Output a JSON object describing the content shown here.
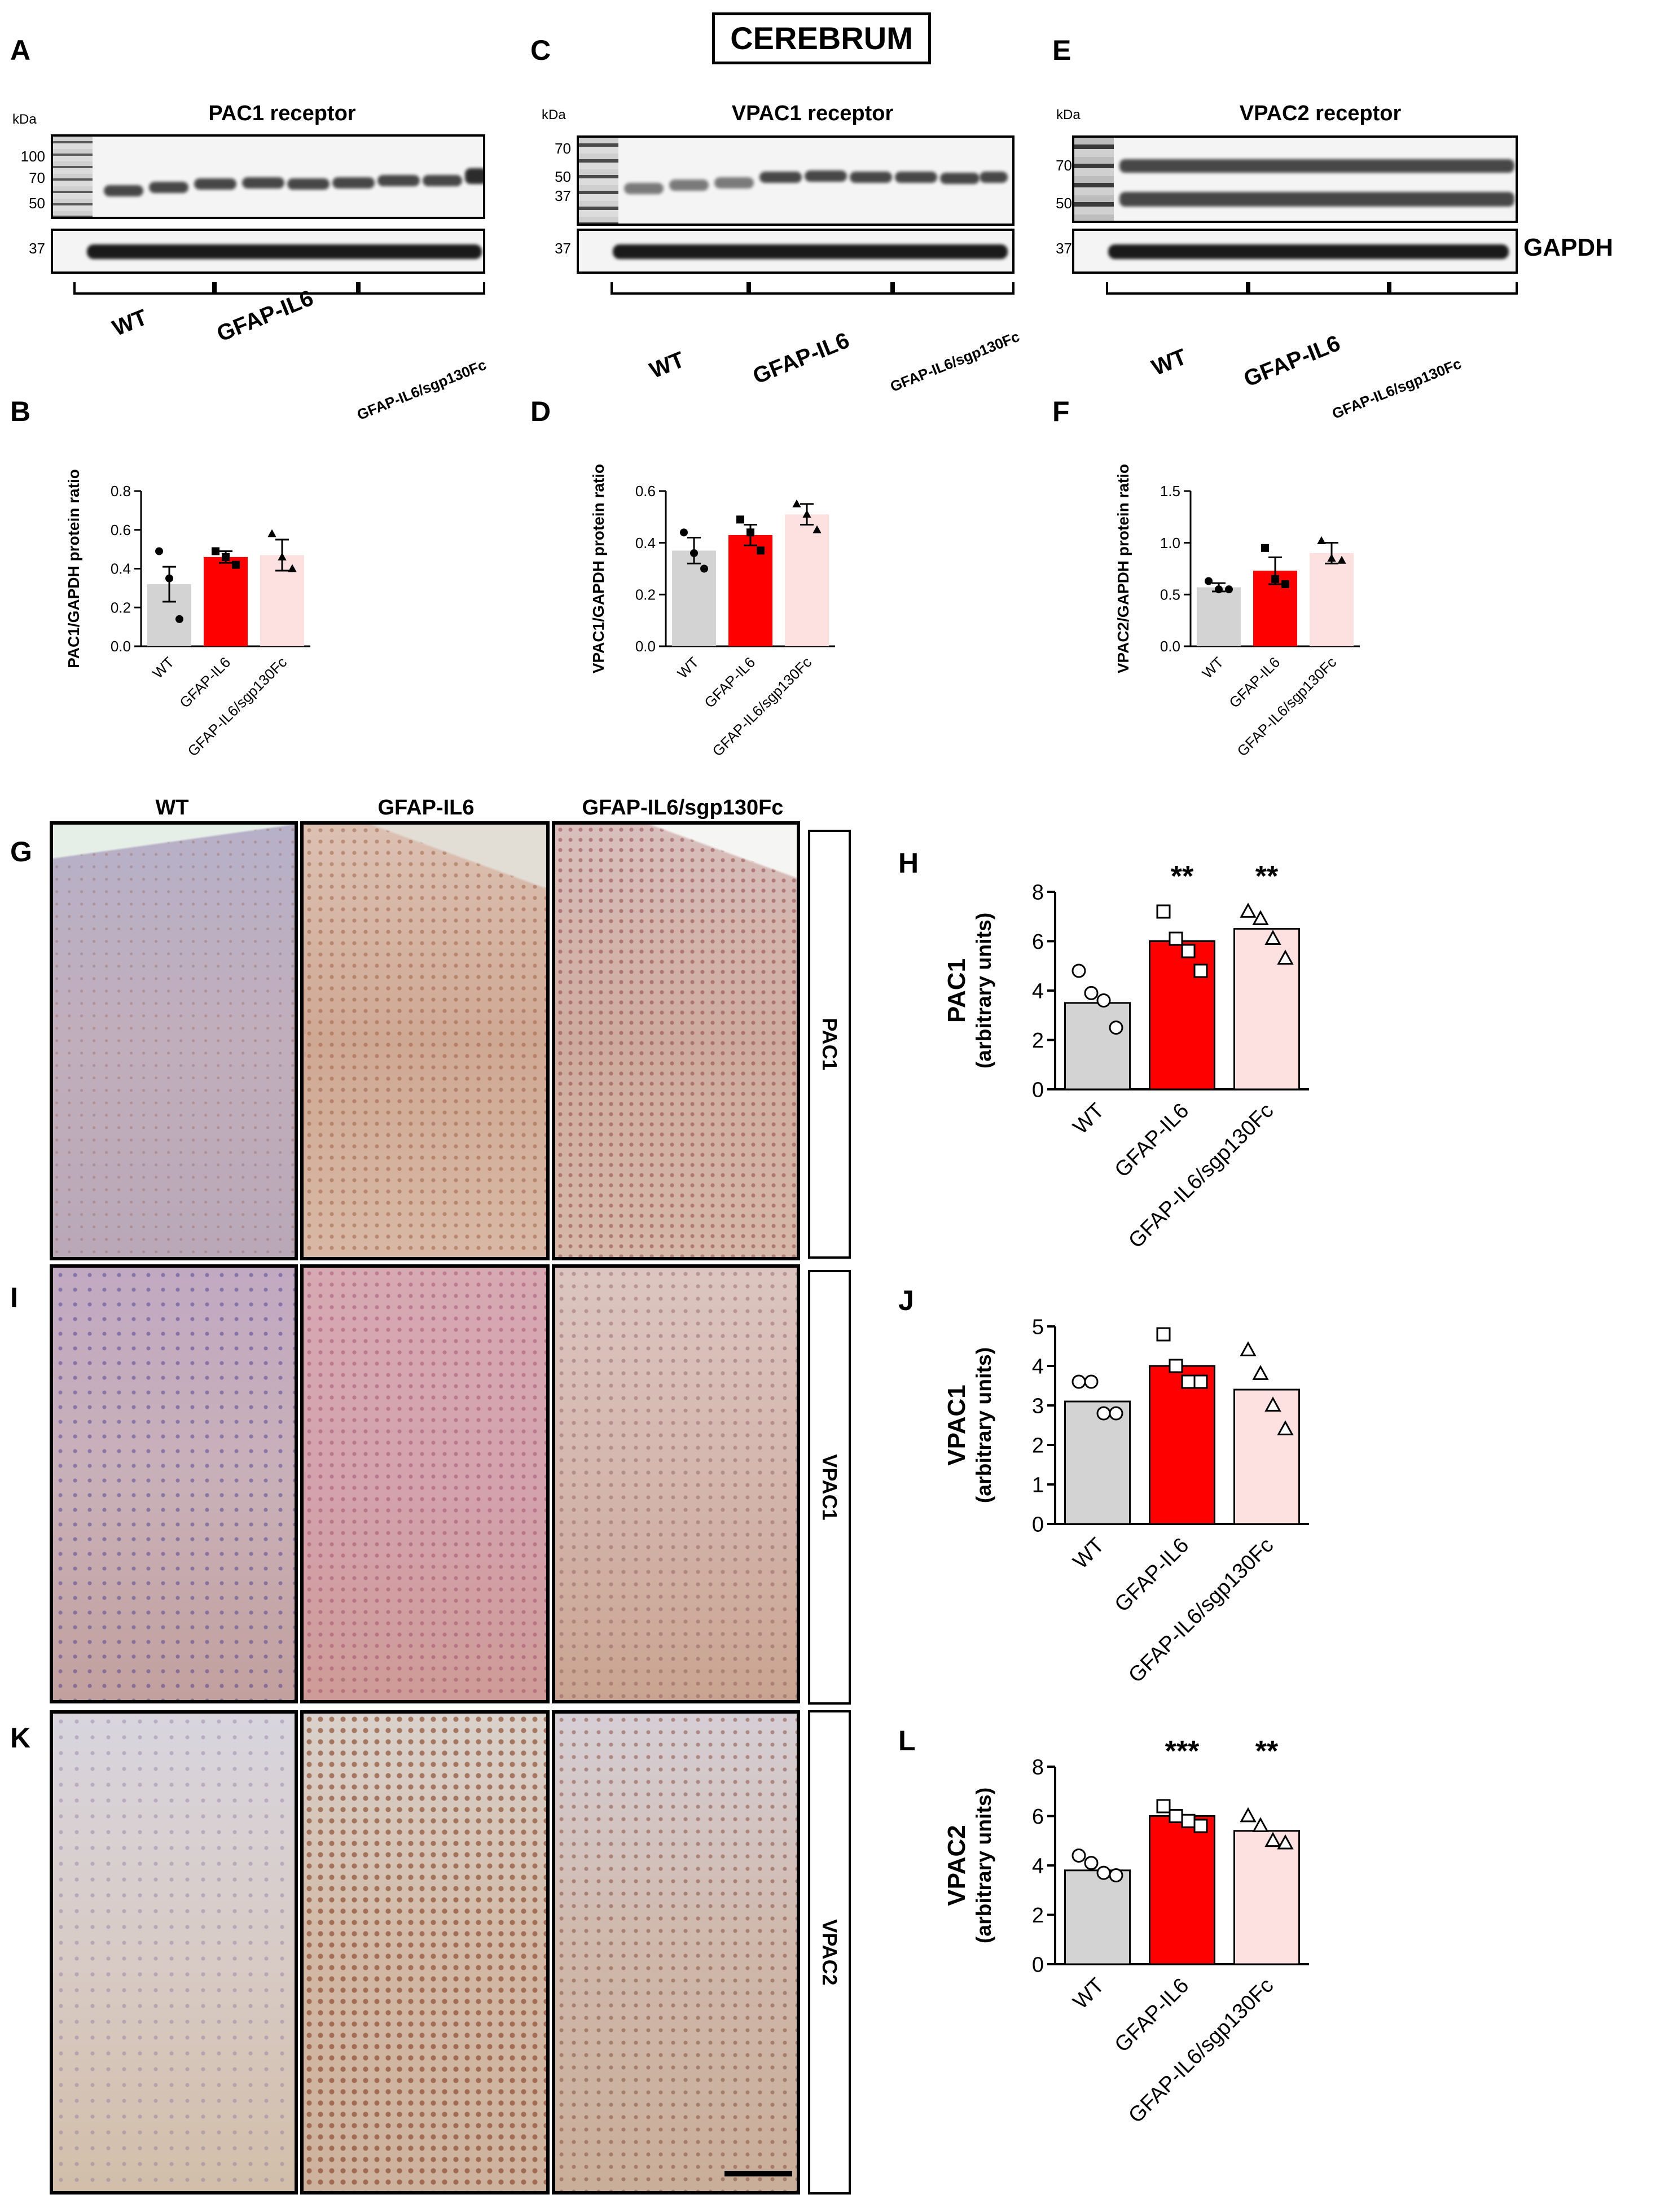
{
  "figure": {
    "header": "CEREBRUM",
    "units_label": "kDa",
    "loading_control": "GAPDH",
    "groups_blot": [
      "WT",
      "GFAP-IL6",
      "GFAP-IL6/sgp130Fc"
    ],
    "groups_micro": [
      "WT",
      "GFAP-IL6",
      "GFAP-IL6/sgp130Fc"
    ],
    "colors": {
      "WT": "#d3d3d3",
      "GFAP-IL6": "#ff0000",
      "GFAP-IL6/sgp130Fc": "#fde0e0"
    }
  },
  "panels": {
    "A": {
      "letter": "A",
      "title": "PAC1 receptor",
      "markers": [
        "100",
        "70",
        "50"
      ],
      "gapdh_marker": "37"
    },
    "C": {
      "letter": "C",
      "title": "VPAC1 receptor",
      "markers": [
        "70",
        "50",
        "37"
      ],
      "gapdh_marker": "37"
    },
    "E": {
      "letter": "E",
      "title": "VPAC2 receptor",
      "markers": [
        "70",
        "50"
      ],
      "gapdh_marker": "37"
    },
    "B": {
      "letter": "B"
    },
    "D": {
      "letter": "D"
    },
    "F": {
      "letter": "F"
    },
    "G": {
      "letter": "G",
      "stain": "PAC1"
    },
    "I": {
      "letter": "I",
      "stain": "VPAC1"
    },
    "K": {
      "letter": "K",
      "stain": "VPAC2"
    },
    "H": {
      "letter": "H"
    },
    "J": {
      "letter": "J"
    },
    "L": {
      "letter": "L"
    }
  },
  "chart_data": [
    {
      "id": "B",
      "type": "bar",
      "ylabel": "PAC1/GAPDH protein ratio",
      "categories": [
        "WT",
        "GFAP-IL6",
        "GFAP-IL6/sgp130Fc"
      ],
      "values": [
        0.32,
        0.46,
        0.47
      ],
      "errors": [
        0.09,
        0.03,
        0.08
      ],
      "points": [
        [
          0.49,
          0.35,
          0.14
        ],
        [
          0.49,
          0.46,
          0.42
        ],
        [
          0.58,
          0.46,
          0.4
        ]
      ],
      "ylim": [
        0,
        0.8
      ],
      "yticks": [
        "0.0",
        "0.2",
        "0.4",
        "0.6",
        "0.8"
      ],
      "point_shape": "filled"
    },
    {
      "id": "D",
      "type": "bar",
      "ylabel": "VPAC1/GAPDH protein ratio",
      "categories": [
        "WT",
        "GFAP-IL6",
        "GFAP-IL6/sgp130Fc"
      ],
      "values": [
        0.37,
        0.43,
        0.51
      ],
      "errors": [
        0.05,
        0.04,
        0.04
      ],
      "points": [
        [
          0.44,
          0.36,
          0.3
        ],
        [
          0.49,
          0.44,
          0.37
        ],
        [
          0.55,
          0.51,
          0.45
        ]
      ],
      "ylim": [
        0,
        0.6
      ],
      "yticks": [
        "0.0",
        "0.2",
        "0.4",
        "0.6"
      ],
      "point_shape": "filled"
    },
    {
      "id": "F",
      "type": "bar",
      "ylabel": "VPAC2/GAPDH protein ratio",
      "categories": [
        "WT",
        "GFAP-IL6",
        "GFAP-IL6/sgp130Fc"
      ],
      "values": [
        0.57,
        0.73,
        0.9
      ],
      "errors": [
        0.04,
        0.13,
        0.1
      ],
      "points": [
        [
          0.63,
          0.55,
          0.55
        ],
        [
          0.95,
          0.65,
          0.6
        ],
        [
          1.02,
          0.85,
          0.83
        ]
      ],
      "ylim": [
        0,
        1.5
      ],
      "yticks": [
        "0.0",
        "0.5",
        "1.0",
        "1.5"
      ],
      "point_shape": "filled"
    },
    {
      "id": "H",
      "type": "bar",
      "ylabel": "PAC1",
      "ylabel2": "(arbitrary units)",
      "categories": [
        "WT",
        "GFAP-IL6",
        "GFAP-IL6/sgp130Fc"
      ],
      "values": [
        3.5,
        6.0,
        6.5
      ],
      "significance": [
        "",
        "**",
        "**"
      ],
      "points": [
        [
          4.8,
          3.9,
          3.6,
          2.5
        ],
        [
          7.2,
          6.1,
          5.6,
          4.8
        ],
        [
          7.2,
          6.9,
          6.1,
          5.3
        ]
      ],
      "ylim": [
        0,
        8
      ],
      "yticks": [
        "0",
        "2",
        "4",
        "6",
        "8"
      ],
      "point_shape": "open"
    },
    {
      "id": "J",
      "type": "bar",
      "ylabel": "VPAC1",
      "ylabel2": "(arbitrary units)",
      "categories": [
        "WT",
        "GFAP-IL6",
        "GFAP-IL6/sgp130Fc"
      ],
      "values": [
        3.1,
        4.0,
        3.4
      ],
      "significance": [
        "",
        "",
        ""
      ],
      "points": [
        [
          3.6,
          3.6,
          2.8,
          2.8
        ],
        [
          4.8,
          4.0,
          3.6,
          3.6
        ],
        [
          4.4,
          3.8,
          3.0,
          2.4
        ]
      ],
      "ylim": [
        0,
        5
      ],
      "yticks": [
        "0",
        "1",
        "2",
        "3",
        "4",
        "5"
      ],
      "point_shape": "open"
    },
    {
      "id": "L",
      "type": "bar",
      "ylabel": "VPAC2",
      "ylabel2": "(arbitrary units)",
      "categories": [
        "WT",
        "GFAP-IL6",
        "GFAP-IL6/sgp130Fc"
      ],
      "values": [
        3.8,
        6.0,
        5.4
      ],
      "significance": [
        "",
        "***",
        "**"
      ],
      "points": [
        [
          4.4,
          4.1,
          3.7,
          3.6
        ],
        [
          6.4,
          6.0,
          5.8,
          5.6
        ],
        [
          6.0,
          5.6,
          5.0,
          4.9
        ]
      ],
      "ylim": [
        0,
        8
      ],
      "yticks": [
        "0",
        "2",
        "4",
        "6",
        "8"
      ],
      "point_shape": "open"
    }
  ]
}
